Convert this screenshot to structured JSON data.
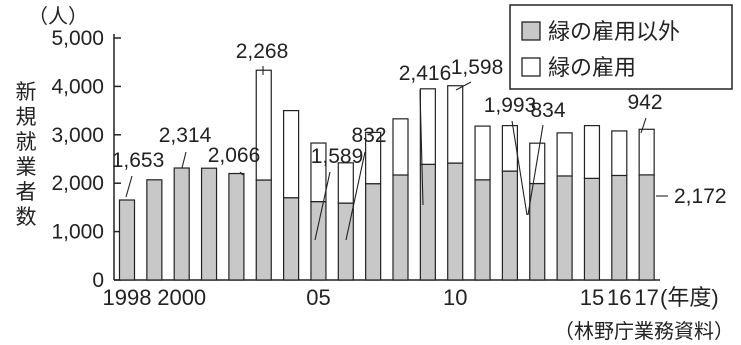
{
  "chart_data": {
    "type": "bar",
    "stacked": true,
    "unit": "（人）",
    "ylabel": "新規就業者数",
    "xlabel_suffix": "(年度)",
    "source": "（林野庁業務資料）",
    "ylim": [
      0,
      5000
    ],
    "y_ticks": [
      "0",
      "1,000",
      "2,000",
      "3,000",
      "4,000",
      "5,000"
    ],
    "y_tick_values": [
      0,
      1000,
      2000,
      3000,
      4000,
      5000
    ],
    "x_tick_labels": [
      {
        "index": 0,
        "label": "1998"
      },
      {
        "index": 2,
        "label": "2000"
      },
      {
        "index": 7,
        "label": "05"
      },
      {
        "index": 12,
        "label": "10"
      },
      {
        "index": 17,
        "label": "15"
      },
      {
        "index": 18,
        "label": "16"
      },
      {
        "index": 19,
        "label": "17"
      }
    ],
    "categories": [
      "1998",
      "1999",
      "2000",
      "2001",
      "2002",
      "2003",
      "2004",
      "2005",
      "2006",
      "2007",
      "2008",
      "2009",
      "2010",
      "2011",
      "2012",
      "2013",
      "2014",
      "2015",
      "2016",
      "2017"
    ],
    "legend": [
      "緑の雇用以外",
      "緑の雇用"
    ],
    "series": [
      {
        "name": "緑の雇用以外",
        "color": "#c8c8c8",
        "values": [
          1653,
          2070,
          2314,
          2310,
          2200,
          2066,
          1700,
          1620,
          1589,
          1990,
          2170,
          2390,
          2416,
          2070,
          2250,
          1993,
          2150,
          2100,
          2160,
          2172
        ]
      },
      {
        "name": "緑の雇用",
        "color": "#ffffff",
        "values": [
          0,
          0,
          0,
          0,
          0,
          2268,
          1800,
          1210,
          832,
          1060,
          1160,
          1560,
          1598,
          1110,
          940,
          834,
          890,
          1090,
          920,
          942
        ]
      }
    ],
    "data_labels": [
      {
        "index": 0,
        "text": "1,653"
      },
      {
        "index": 2,
        "text": "2,314"
      },
      {
        "index": 4,
        "text": "2,066"
      },
      {
        "index": 5,
        "text": "2,268"
      },
      {
        "index": 7,
        "text": "1,589"
      },
      {
        "index": 8,
        "text": "832"
      },
      {
        "index": 11,
        "text": "2,416"
      },
      {
        "index": 12,
        "text": "1,598"
      },
      {
        "index": 14,
        "text": "1,993"
      },
      {
        "index": 15,
        "text": "834"
      },
      {
        "index": 19,
        "text": "942"
      },
      {
        "index": 19,
        "text": "2,172"
      }
    ]
  }
}
